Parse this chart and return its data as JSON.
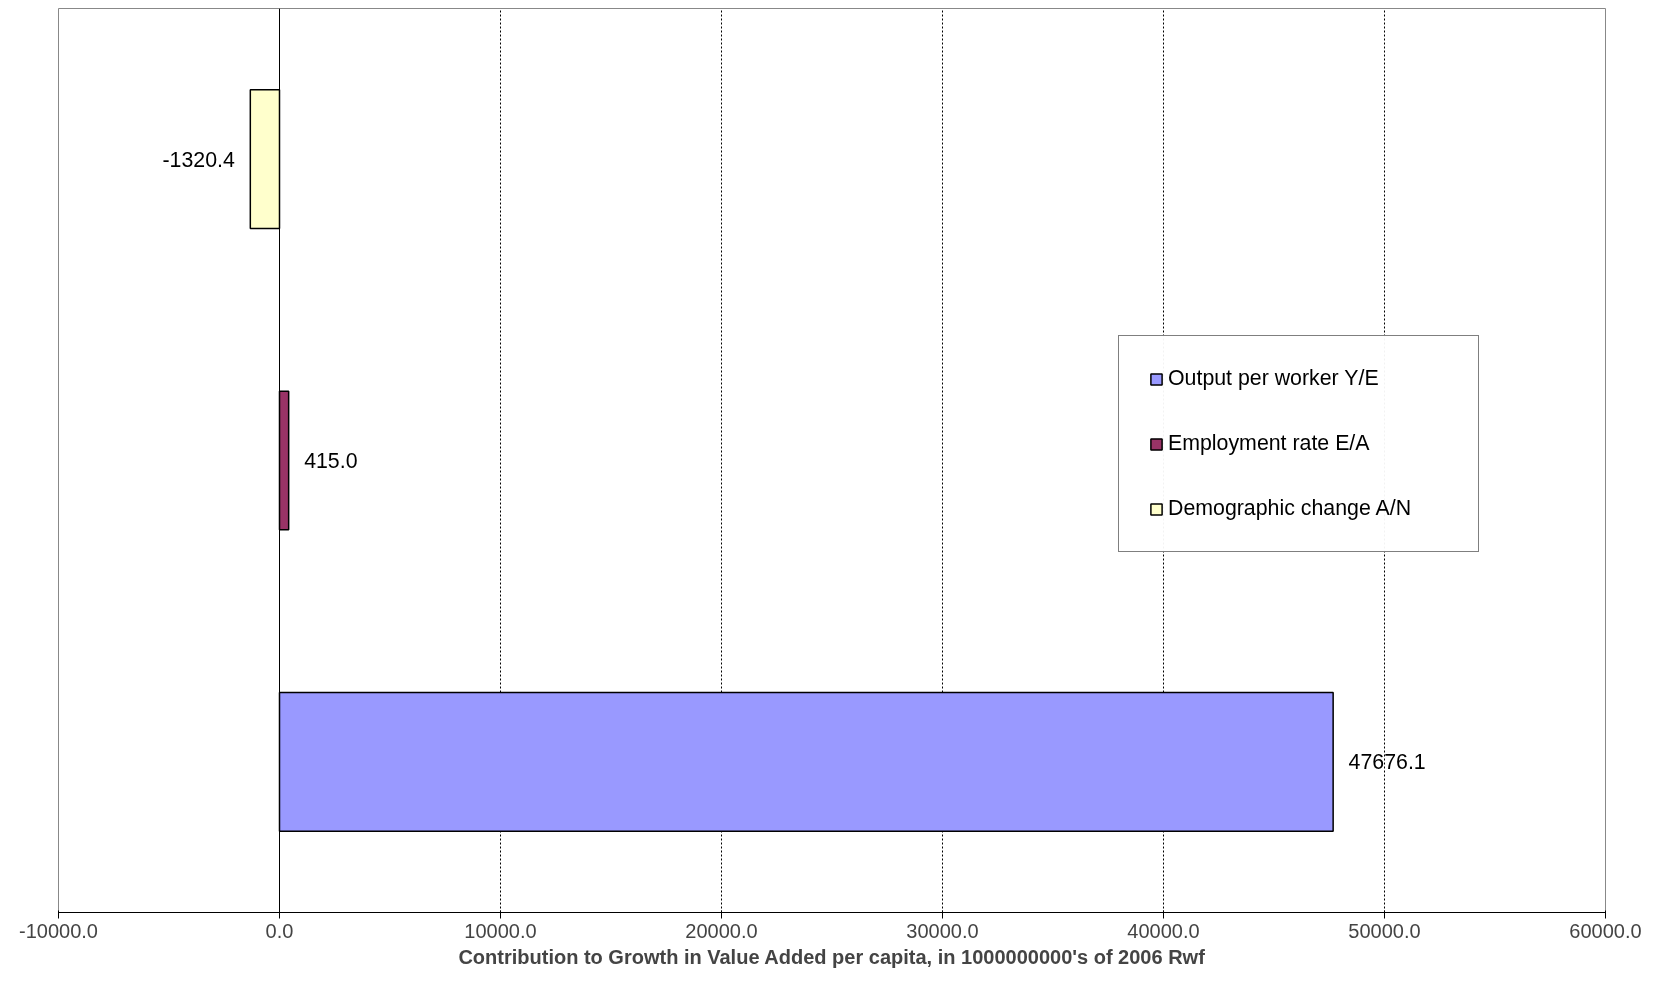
{
  "chart_data": {
    "type": "bar",
    "orientation": "horizontal",
    "xlabel": "Contribution to Growth in Value Added per capita, in 1000000000's of 2006 Rwf",
    "categories": [
      null,
      null,
      null
    ],
    "series": [
      {
        "name": "Output per worker Y/E",
        "color": "#9999ff",
        "values": [
          null,
          null,
          47676.1
        ],
        "value_labels": [
          null,
          null,
          "47676.1"
        ]
      },
      {
        "name": "Employment rate E/A",
        "color": "#993366",
        "values": [
          null,
          415.0,
          null
        ],
        "value_labels": [
          null,
          "415.0",
          null
        ]
      },
      {
        "name": "Demographic change A/N",
        "color": "#ffffcc",
        "values": [
          -1320.4,
          null,
          null
        ],
        "value_labels": [
          "-1320.4",
          null,
          null
        ]
      }
    ],
    "xlim": [
      -10000,
      60000
    ],
    "xticks": [
      {
        "value": -10000,
        "label": "-10000.0"
      },
      {
        "value": 0,
        "label": "0.0"
      },
      {
        "value": 10000,
        "label": "10000.0"
      },
      {
        "value": 20000,
        "label": "20000.0"
      },
      {
        "value": 30000,
        "label": "30000.0"
      },
      {
        "value": 40000,
        "label": "40000.0"
      },
      {
        "value": 50000,
        "label": "50000.0"
      },
      {
        "value": 60000,
        "label": "60000.0"
      }
    ],
    "grid": "x",
    "legend": "right",
    "tick_labels": "x"
  }
}
